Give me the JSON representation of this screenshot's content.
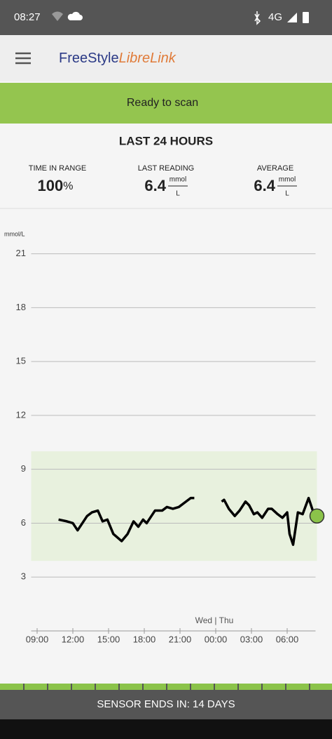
{
  "status_bar": {
    "time": "08:27",
    "network": "4G"
  },
  "app_bar": {
    "logo_main": "FreeStyle",
    "logo_accent": "LibreLink"
  },
  "banner": {
    "text": "Ready to scan"
  },
  "summary": {
    "title": "LAST 24 HOURS",
    "stats": [
      {
        "label": "TIME IN RANGE",
        "value": 100,
        "unit": "%"
      },
      {
        "label": "LAST READING",
        "value": 6.4,
        "unit_top": "mmol",
        "unit_bottom": "L"
      },
      {
        "label": "AVERAGE",
        "value": 6.4,
        "unit_top": "mmol",
        "unit_bottom": "L"
      }
    ]
  },
  "chart_data": {
    "type": "line",
    "y_label": "mmol/L",
    "color": "#000000",
    "last_point_color": "#8bc34a",
    "target_range": [
      3.9,
      10
    ],
    "target_color": "#e8f1de",
    "day_divider": {
      "x": 24,
      "label": "Wed | Thu"
    },
    "x": [
      10.8,
      11.5,
      12.0,
      12.4,
      12.8,
      13.2,
      13.6,
      14.1,
      14.5,
      14.9,
      15.4,
      16.1,
      16.6,
      17.1,
      17.5,
      17.9,
      18.2,
      18.9,
      19.5,
      19.9,
      20.4,
      20.9,
      21.5,
      21.9,
      22.2,
      23.3,
      24.5,
      24.7,
      25.1,
      25.6,
      26.0,
      26.5,
      26.8,
      27.2,
      27.5,
      27.9,
      28.4,
      28.7,
      29.2,
      29.6,
      30.0,
      30.2,
      30.5,
      30.9,
      31.3,
      31.8,
      32.2,
      32.5
    ],
    "values": [
      6.2,
      6.1,
      6.0,
      5.6,
      6.0,
      6.4,
      6.6,
      6.7,
      6.1,
      6.2,
      5.4,
      5.0,
      5.4,
      6.1,
      5.8,
      6.2,
      6.0,
      6.7,
      6.7,
      6.9,
      6.8,
      6.9,
      7.2,
      7.4,
      7.4,
      null,
      7.2,
      7.3,
      6.8,
      6.4,
      6.7,
      7.2,
      7.0,
      6.5,
      6.6,
      6.3,
      6.8,
      6.8,
      6.5,
      6.3,
      6.6,
      5.4,
      4.8,
      6.6,
      6.5,
      7.4,
      6.6,
      6.4
    ],
    "xlim": [
      8.5,
      32.5
    ],
    "ylim": [
      0,
      22
    ],
    "xticks": [
      {
        "value": 9,
        "label": "09:00"
      },
      {
        "value": 12,
        "label": "12:00"
      },
      {
        "value": 15,
        "label": "15:00"
      },
      {
        "value": 18,
        "label": "18:00"
      },
      {
        "value": 21,
        "label": "21:00"
      },
      {
        "value": 24,
        "label": "00:00"
      },
      {
        "value": 27,
        "label": "03:00"
      },
      {
        "value": 30,
        "label": "06:00"
      }
    ],
    "yticks": [
      3,
      6,
      9,
      12,
      15,
      18,
      21
    ],
    "grid": true
  },
  "footer": {
    "text": "SENSOR ENDS IN: 14 DAYS"
  }
}
